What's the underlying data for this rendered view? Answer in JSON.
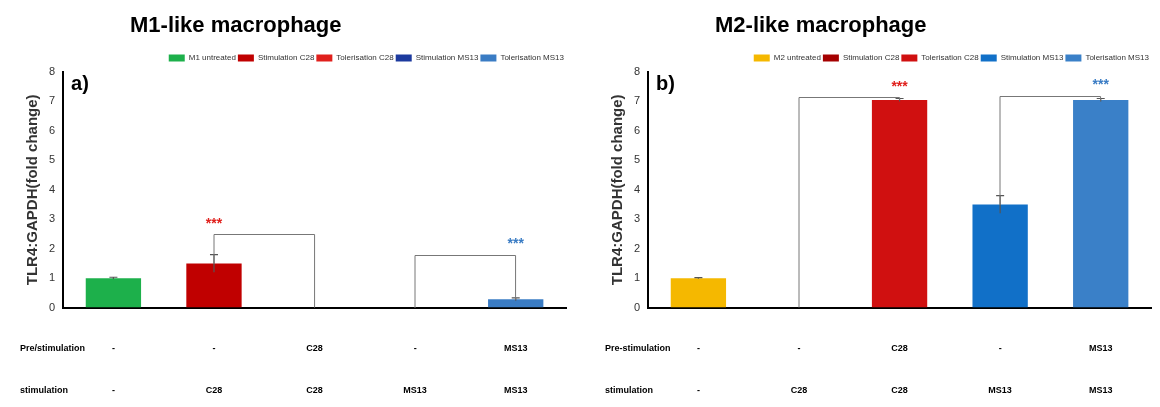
{
  "chart_data": [
    {
      "type": "bar",
      "title": "M1-like macrophage",
      "ylabel": "TLR4:GAPDH(fold change)",
      "categories": [
        null,
        null,
        null,
        null,
        null
      ],
      "series": [
        {
          "name": "M1 untreated",
          "color": "#1db04b",
          "values": [
            1.0,
            null,
            null,
            null,
            null
          ],
          "errors": [
            0.03,
            null,
            null,
            null,
            null
          ]
        },
        {
          "name": "Stimulation C28",
          "color": "#c00000",
          "values": [
            null,
            1.5,
            null,
            null,
            null
          ],
          "errors": [
            null,
            0.3,
            null,
            null,
            null
          ]
        },
        {
          "name": "Tolerisation C28",
          "color": "#e0201c",
          "values": [
            null,
            null,
            0,
            null,
            null
          ]
        },
        {
          "name": "Stimulation MS13",
          "color": "#1c3a9e",
          "values": [
            null,
            null,
            null,
            0,
            null
          ]
        },
        {
          "name": "Tolerisation MS13",
          "color": "#3a7cc4",
          "values": [
            null,
            null,
            null,
            null,
            0.28
          ],
          "errors": [
            null,
            null,
            null,
            null,
            0.05
          ]
        }
      ],
      "ylim": [
        0,
        8
      ],
      "yticks": [
        0,
        1,
        2,
        3,
        4,
        5,
        6,
        7,
        8
      ],
      "grid": false,
      "legend": "top right",
      "annotations": [
        "a)",
        "***",
        "***",
        "Pre/stimulation",
        "-",
        "-",
        "C28",
        "-",
        "MS13",
        "stimulation",
        "-",
        "C28",
        "C28",
        "MS13",
        "MS13"
      ]
    },
    {
      "type": "bar",
      "title": "M2-like macrophage",
      "ylabel": "TLR4:GAPDH(fold change)",
      "categories": [
        null,
        null,
        null,
        null,
        null
      ],
      "series": [
        {
          "name": "M2 untreated",
          "color": "#f5b800",
          "values": [
            1.0,
            null,
            null,
            null,
            null
          ],
          "errors": [
            0.02,
            null,
            null,
            null,
            null
          ]
        },
        {
          "name": "Stimulation C28",
          "color": "#a50000",
          "values": [
            null,
            0,
            null,
            null,
            null
          ]
        },
        {
          "name": "Tolerisation C28",
          "color": "#d01010",
          "values": [
            null,
            null,
            7.05,
            null,
            null
          ],
          "errors": [
            null,
            null,
            0.05,
            null,
            null
          ]
        },
        {
          "name": "Stimulation MS13",
          "color": "#1170c8",
          "values": [
            null,
            null,
            null,
            3.5,
            null
          ],
          "errors": [
            null,
            null,
            null,
            0.3,
            null
          ]
        },
        {
          "name": "Tolerisation MS13",
          "color": "#3a80c8",
          "values": [
            null,
            null,
            null,
            null,
            7.05
          ],
          "errors": [
            null,
            null,
            null,
            null,
            0.05
          ]
        }
      ],
      "ylim": [
        0,
        8
      ],
      "yticks": [
        0,
        1,
        2,
        3,
        4,
        5,
        6,
        7,
        8
      ],
      "grid": false,
      "legend": "top right",
      "annotations": [
        "b)",
        "***",
        "***",
        "Pre-stimulation",
        "-",
        "-",
        "C28",
        "-",
        "MS13",
        "stimulation",
        "-",
        "C28",
        "C28",
        "MS13",
        "MS13"
      ]
    }
  ]
}
